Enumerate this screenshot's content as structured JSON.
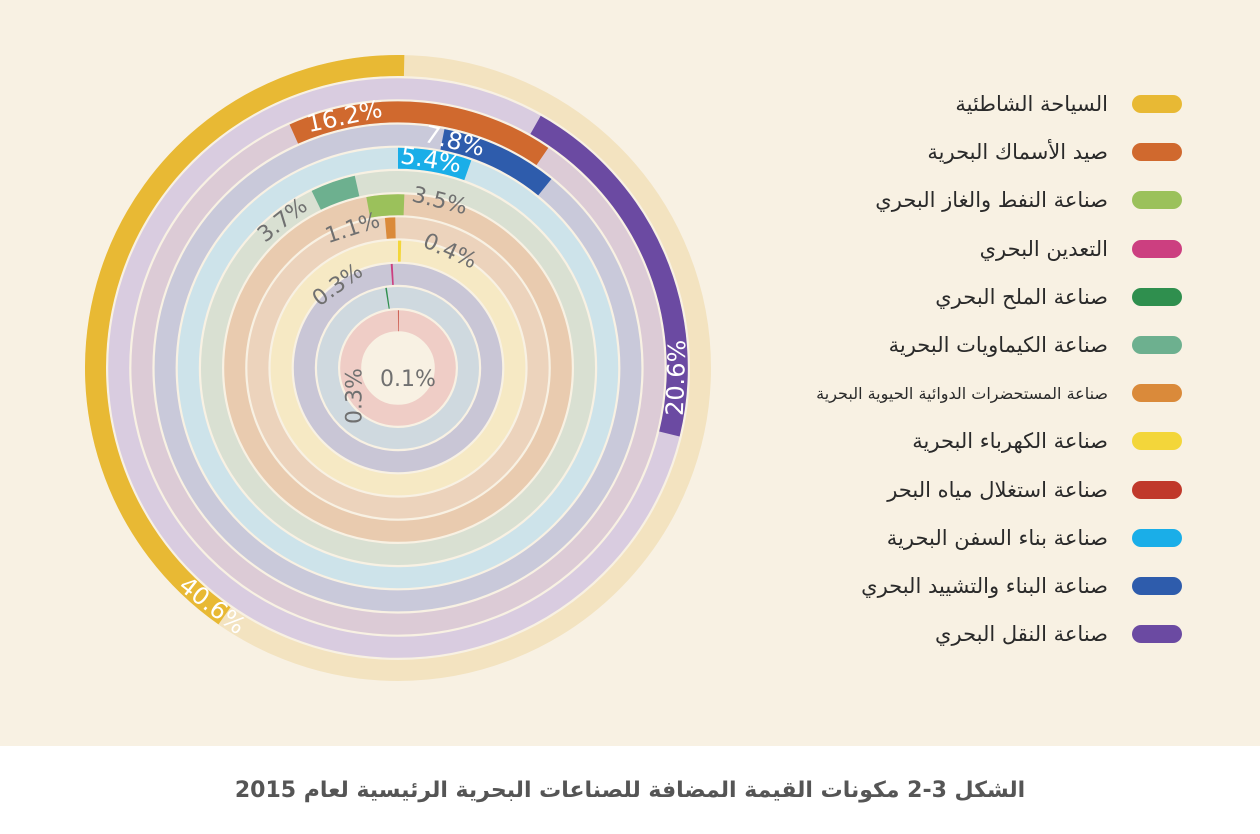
{
  "chart_data": {
    "type": "radial-bar",
    "caption": "الشكل 3-2 مكونات القيمة المضافة للصناعات البحرية الرئيسية لعام 2015",
    "series": [
      {
        "name": "السياحة الشاطئية",
        "value": 40.6,
        "label": "40.6%",
        "color": "#e8b934",
        "track": "#f3e3c0",
        "label_color": "#ffffff"
      },
      {
        "name": "صيد الأسماك البحرية",
        "value": 16.2,
        "label": "16.2%",
        "color": "#d0692e",
        "track": "#dccbd6",
        "label_color": "#ffffff"
      },
      {
        "name": "صناعة النفط والغاز البحري",
        "value": 3.5,
        "label": "3.5%",
        "color": "#9bc15b",
        "track": "#e9cbaf",
        "label_color": "#707070"
      },
      {
        "name": "التعدين البحري",
        "value": 0.3,
        "label": "0.3%",
        "color": "#cc3f80",
        "track": "#c9c6d6",
        "label_color": "#707070"
      },
      {
        "name": "صناعة الملح البحري",
        "value": 0.3,
        "label": "0.3%",
        "color": "#2f8f4e",
        "track": "#cfd9df",
        "label_color": "#707070"
      },
      {
        "name": "صناعة الكيماويات البحرية",
        "value": 3.7,
        "label": "3.7%",
        "color": "#6db08f",
        "track": "#d9e0d2",
        "label_color": "#707070"
      },
      {
        "name": "صناعة المستحضرات الدوائية الحيوية البحرية",
        "value": 1.1,
        "label": "1.1%",
        "color": "#da8a3a",
        "track": "#ecd3bc",
        "label_color": "#707070"
      },
      {
        "name": "صناعة الكهرباء البحرية",
        "value": 0.4,
        "label": "0.4%",
        "color": "#f3d63a",
        "track": "#f6e9c4",
        "label_color": "#707070"
      },
      {
        "name": "صناعة استغلال مياه البحر",
        "value": 0.1,
        "label": "0.1%",
        "color": "#c0392b",
        "track": "#efcdc6",
        "label_color": "#707070"
      },
      {
        "name": "صناعة بناء السفن البحرية",
        "value": 5.4,
        "label": "5.4%",
        "color": "#1aaee8",
        "track": "#cde3ea",
        "label_color": "#ffffff"
      },
      {
        "name": "صناعة البناء والتشييد البحري",
        "value": 7.8,
        "label": "7.8%",
        "color": "#2e5cac",
        "track": "#c9c9da",
        "label_color": "#ffffff"
      },
      {
        "name": "صناعة النقل البحري",
        "value": 20.6,
        "label": "20.6%",
        "color": "#6b4aa2",
        "track": "#d9cce0",
        "label_color": "#ffffff"
      }
    ]
  }
}
